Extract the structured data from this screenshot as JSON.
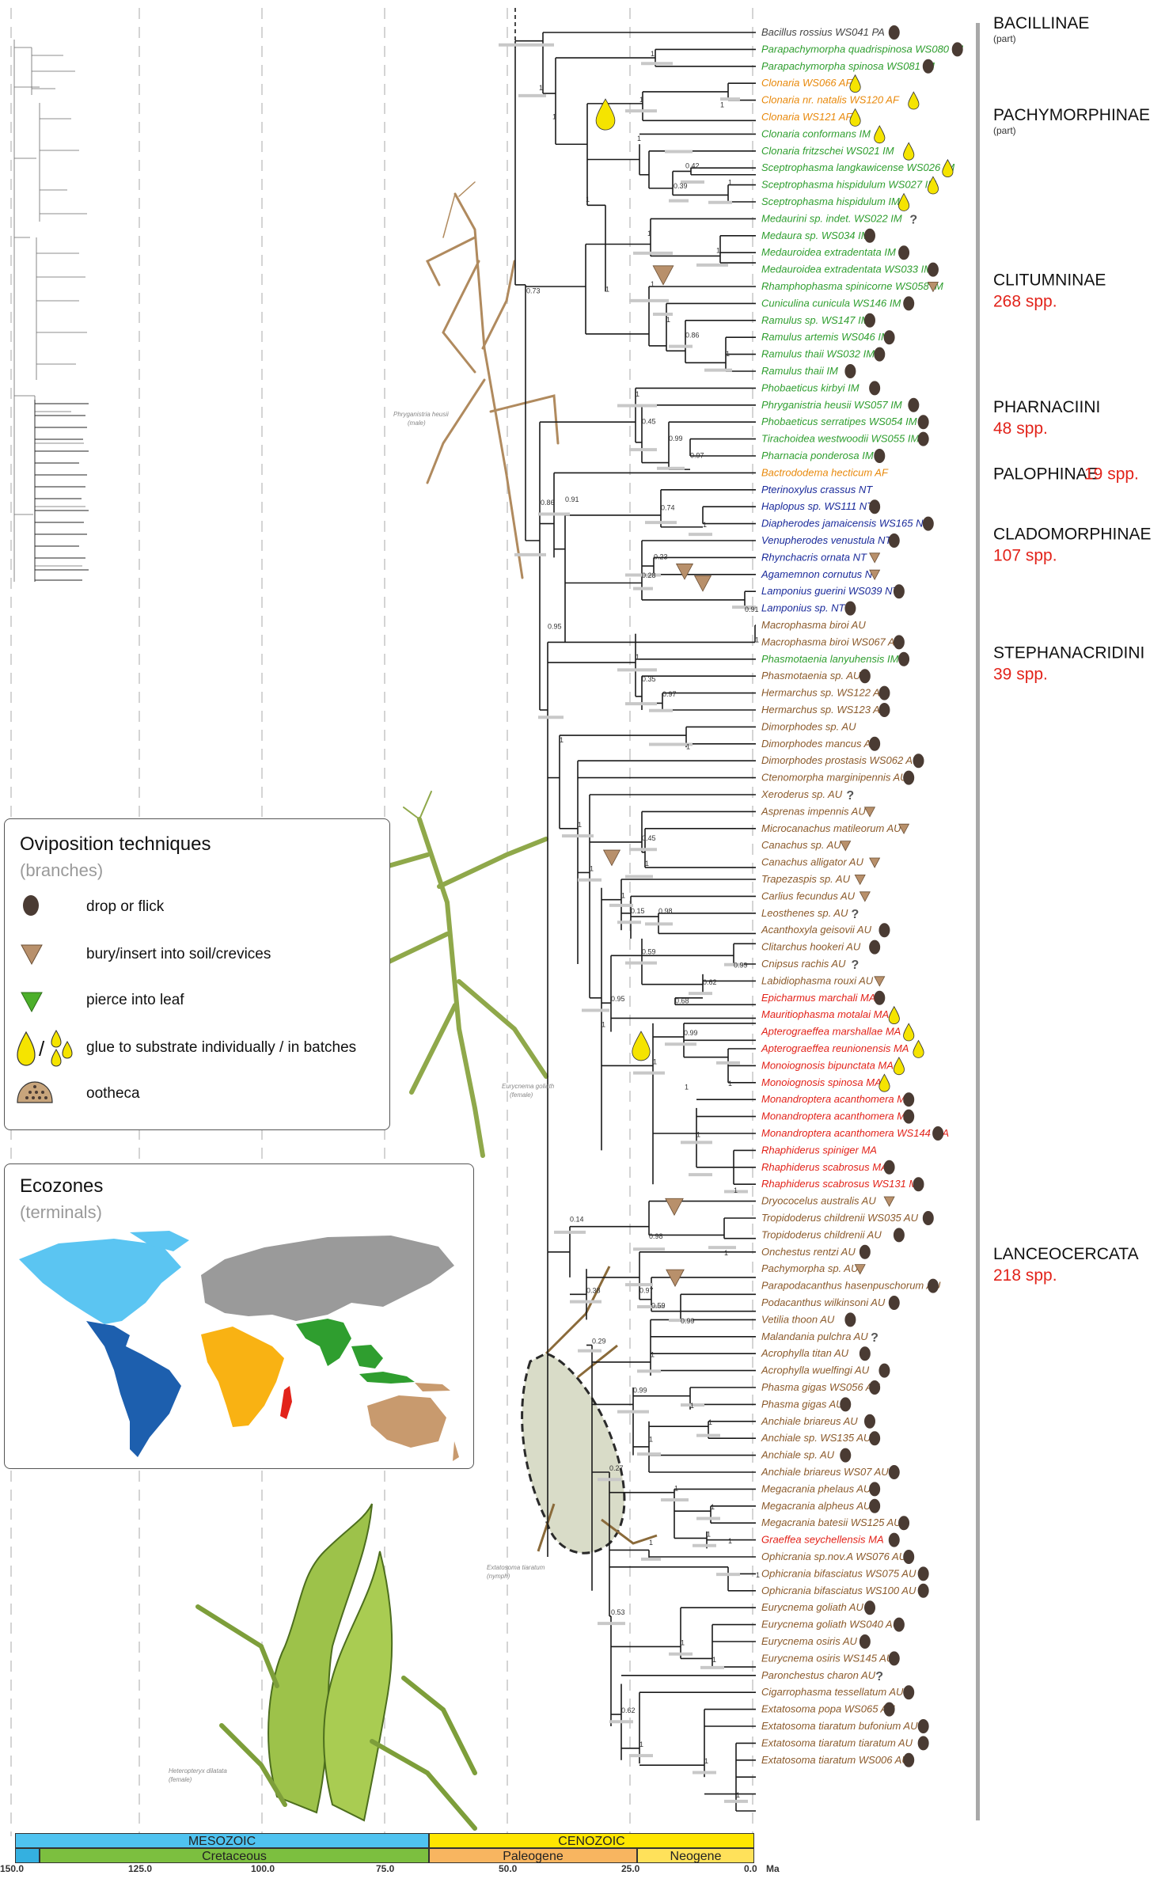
{
  "colors": {
    "IM": "#2f9e2f",
    "AF": "#e8890c",
    "PA": "#444444",
    "NT": "#1a2a9a",
    "AU": "#8b5a2b",
    "MA": "#e2231a",
    "drop": "#4a3b33",
    "bury": "#b8906b",
    "pierce": "#4caf2a",
    "glue": "#f5e400"
  },
  "taxa": [
    {
      "name": "Bacillus rossius WS041 PA",
      "region": "PA",
      "mark": "drop"
    },
    {
      "name": "Parapachymorpha quadrispinosa WS080 IM",
      "region": "IM",
      "mark": "drop"
    },
    {
      "name": "Parapachymorpha spinosa WS081 IM",
      "region": "IM",
      "mark": "drop"
    },
    {
      "name": "Clonaria WS066 AF",
      "region": "AF",
      "mark": "glue"
    },
    {
      "name": "Clonaria nr. natalis WS120 AF",
      "region": "AF",
      "mark": "glue"
    },
    {
      "name": "Clonaria WS121 AF",
      "region": "AF",
      "mark": "glue"
    },
    {
      "name": "Clonaria conformans IM",
      "region": "IM",
      "mark": "glue"
    },
    {
      "name": "Clonaria fritzschei WS021 IM",
      "region": "IM",
      "mark": "glue"
    },
    {
      "name": "Sceptrophasma langkawicense WS026 IM",
      "region": "IM",
      "mark": "glue"
    },
    {
      "name": "Sceptrophasma hispidulum WS027 IM",
      "region": "IM",
      "mark": "glue"
    },
    {
      "name": "Sceptrophasma hispidulum IM",
      "region": "IM",
      "mark": "glue"
    },
    {
      "name": "Medaurini sp. indet. WS022 IM",
      "region": "IM",
      "mark": "q"
    },
    {
      "name": "Medaura sp. WS034 IM",
      "region": "IM",
      "mark": "drop"
    },
    {
      "name": "Medauroidea extradentata IM",
      "region": "IM",
      "mark": "drop"
    },
    {
      "name": "Medauroidea extradentata WS033 IM",
      "region": "IM",
      "mark": "drop"
    },
    {
      "name": "Rhamphophasma spinicorne WS058 IM",
      "region": "IM",
      "mark": "bury"
    },
    {
      "name": "Cuniculina cunicula WS146 IM",
      "region": "IM",
      "mark": "drop"
    },
    {
      "name": "Ramulus sp. WS147 IM",
      "region": "IM",
      "mark": "drop"
    },
    {
      "name": "Ramulus artemis WS046 IM",
      "region": "IM",
      "mark": "drop"
    },
    {
      "name": "Ramulus thaii WS032 IM",
      "region": "IM",
      "mark": "drop"
    },
    {
      "name": "Ramulus thaii IM",
      "region": "IM",
      "mark": "drop"
    },
    {
      "name": "Phobaeticus kirbyi IM",
      "region": "IM",
      "mark": "drop"
    },
    {
      "name": "Phryganistria heusii WS057 IM",
      "region": "IM",
      "mark": "drop"
    },
    {
      "name": "Phobaeticus serratipes WS054 IM",
      "region": "IM",
      "mark": "drop"
    },
    {
      "name": "Tirachoidea westwoodii WS055 IM",
      "region": "IM",
      "mark": "drop"
    },
    {
      "name": "Pharnacia ponderosa IM",
      "region": "IM",
      "mark": "drop"
    },
    {
      "name": "Bactrododema hecticum AF",
      "region": "AF",
      "mark": ""
    },
    {
      "name": "Pterinoxylus crassus NT",
      "region": "NT",
      "mark": ""
    },
    {
      "name": "Haplopus sp. WS111 NT",
      "region": "NT",
      "mark": "drop"
    },
    {
      "name": "Diapherodes jamaicensis WS165 NT",
      "region": "NT",
      "mark": "drop"
    },
    {
      "name": "Venupherodes venustula NT",
      "region": "NT",
      "mark": "drop"
    },
    {
      "name": "Rhynchacris ornata NT",
      "region": "NT",
      "mark": "bury"
    },
    {
      "name": "Agamemnon cornutus NT",
      "region": "NT",
      "mark": "bury"
    },
    {
      "name": "Lamponius guerini WS039 NT",
      "region": "NT",
      "mark": "drop"
    },
    {
      "name": "Lamponius sp. NT",
      "region": "NT",
      "mark": "drop"
    },
    {
      "name": "Macrophasma biroi AU",
      "region": "AU",
      "mark": ""
    },
    {
      "name": "Macrophasma biroi WS067 AU",
      "region": "AU",
      "mark": "drop"
    },
    {
      "name": "Phasmotaenia lanyuhensis IM",
      "region": "IM",
      "mark": "drop"
    },
    {
      "name": "Phasmotaenia sp. AU",
      "region": "AU",
      "mark": "drop"
    },
    {
      "name": "Hermarchus sp. WS122 AU",
      "region": "AU",
      "mark": "drop"
    },
    {
      "name": "Hermarchus sp. WS123 AU",
      "region": "AU",
      "mark": "drop"
    },
    {
      "name": "Dimorphodes sp. AU",
      "region": "AU",
      "mark": ""
    },
    {
      "name": "Dimorphodes mancus AU",
      "region": "AU",
      "mark": "drop"
    },
    {
      "name": "Dimorphodes prostasis WS062 AU",
      "region": "AU",
      "mark": "drop"
    },
    {
      "name": "Ctenomorpha marginipennis AU",
      "region": "AU",
      "mark": "drop"
    },
    {
      "name": "Xeroderus sp. AU",
      "region": "AU",
      "mark": "q"
    },
    {
      "name": "Asprenas impennis AU",
      "region": "AU",
      "mark": "bury"
    },
    {
      "name": "Microcanachus matileorum AU",
      "region": "AU",
      "mark": "bury"
    },
    {
      "name": "Canachus sp. AU",
      "region": "AU",
      "mark": "bury"
    },
    {
      "name": "Canachus alligator AU",
      "region": "AU",
      "mark": "bury"
    },
    {
      "name": "Trapezaspis sp. AU",
      "region": "AU",
      "mark": "bury"
    },
    {
      "name": "Carlius fecundus AU",
      "region": "AU",
      "mark": "bury"
    },
    {
      "name": "Leosthenes sp. AU",
      "region": "AU",
      "mark": "q"
    },
    {
      "name": "Acanthoxyla geisovii AU",
      "region": "AU",
      "mark": "drop"
    },
    {
      "name": "Clitarchus hookeri AU",
      "region": "AU",
      "mark": "drop"
    },
    {
      "name": "Cnipsus rachis AU",
      "region": "AU",
      "mark": "q"
    },
    {
      "name": "Labidiophasma rouxi AU",
      "region": "AU",
      "mark": "bury"
    },
    {
      "name": "Epicharmus marchali MA",
      "region": "MA",
      "mark": "drop"
    },
    {
      "name": "Mauritiophasma motalai MA",
      "region": "MA",
      "mark": "glue"
    },
    {
      "name": "Apterograeffea marshallae MA",
      "region": "MA",
      "mark": "glue"
    },
    {
      "name": "Apterograeffea reunionensis MA",
      "region": "MA",
      "mark": "glue"
    },
    {
      "name": "Monoiognosis bipunctata MA",
      "region": "MA",
      "mark": "glue"
    },
    {
      "name": "Monoiognosis spinosa MA",
      "region": "MA",
      "mark": "glue"
    },
    {
      "name": "Monandroptera acanthomera MA",
      "region": "MA",
      "mark": "drop"
    },
    {
      "name": "Monandroptera acanthomera MA",
      "region": "MA",
      "mark": "drop"
    },
    {
      "name": "Monandroptera acanthomera WS144 MA",
      "region": "MA",
      "mark": "drop"
    },
    {
      "name": "Rhaphiderus spiniger MA",
      "region": "MA",
      "mark": ""
    },
    {
      "name": "Rhaphiderus scabrosus MA",
      "region": "MA",
      "mark": "drop"
    },
    {
      "name": "Rhaphiderus scabrosus WS131 MA",
      "region": "MA",
      "mark": "drop"
    },
    {
      "name": "Dryococelus australis AU",
      "region": "AU",
      "mark": "bury"
    },
    {
      "name": "Tropidoderus childrenii WS035 AU",
      "region": "AU",
      "mark": "drop"
    },
    {
      "name": "Tropidoderus childrenii AU",
      "region": "AU",
      "mark": "drop"
    },
    {
      "name": "Onchestus rentzi AU",
      "region": "AU",
      "mark": "drop"
    },
    {
      "name": "Pachymorpha sp. AU",
      "region": "AU",
      "mark": "bury"
    },
    {
      "name": "Parapodacanthus hasenpuschorum AU",
      "region": "AU",
      "mark": "drop"
    },
    {
      "name": "Podacanthus wilkinsoni AU",
      "region": "AU",
      "mark": "drop"
    },
    {
      "name": "Vetilia thoon AU",
      "region": "AU",
      "mark": "drop"
    },
    {
      "name": "Malandania pulchra AU",
      "region": "AU",
      "mark": "q"
    },
    {
      "name": "Acrophylla titan AU",
      "region": "AU",
      "mark": "drop"
    },
    {
      "name": "Acrophylla wuelfingi AU",
      "region": "AU",
      "mark": "drop"
    },
    {
      "name": "Phasma gigas WS056 AU",
      "region": "AU",
      "mark": "drop"
    },
    {
      "name": "Phasma gigas AU",
      "region": "AU",
      "mark": "drop"
    },
    {
      "name": "Anchiale briareus AU",
      "region": "AU",
      "mark": "drop"
    },
    {
      "name": "Anchiale sp. WS135 AU",
      "region": "AU",
      "mark": "drop"
    },
    {
      "name": "Anchiale sp. AU",
      "region": "AU",
      "mark": "drop"
    },
    {
      "name": "Anchiale briareus WS07 AU",
      "region": "AU",
      "mark": "drop"
    },
    {
      "name": "Megacrania phelaus AU",
      "region": "AU",
      "mark": "drop"
    },
    {
      "name": "Megacrania alpheus AU",
      "region": "AU",
      "mark": "drop"
    },
    {
      "name": "Megacrania batesii WS125 AU",
      "region": "AU",
      "mark": "drop"
    },
    {
      "name": "Graeffea seychellensis MA",
      "region": "MA",
      "mark": "drop"
    },
    {
      "name": "Ophicrania sp.nov.A WS076 AU",
      "region": "AU",
      "mark": "drop"
    },
    {
      "name": "Ophicrania bifasciatus WS075 AU",
      "region": "AU",
      "mark": "drop"
    },
    {
      "name": "Ophicrania bifasciatus WS100 AU",
      "region": "AU",
      "mark": "drop"
    },
    {
      "name": "Eurycnema goliath AU",
      "region": "AU",
      "mark": "drop"
    },
    {
      "name": "Eurycnema goliath WS040 AU",
      "region": "AU",
      "mark": "drop"
    },
    {
      "name": "Eurycnema osiris AU",
      "region": "AU",
      "mark": "drop"
    },
    {
      "name": "Eurycnema osiris WS145 AU",
      "region": "AU",
      "mark": "drop"
    },
    {
      "name": "Paronchestus charon AU",
      "region": "AU",
      "mark": "q"
    },
    {
      "name": "Cigarrophasma tessellatum AU",
      "region": "AU",
      "mark": "drop"
    },
    {
      "name": "Extatosoma popa WS065 AU",
      "region": "AU",
      "mark": "drop"
    },
    {
      "name": "Extatosoma tiaratum bufonium AU",
      "region": "AU",
      "mark": "drop"
    },
    {
      "name": "Extatosoma tiaratum tiaratum AU",
      "region": "AU",
      "mark": "drop"
    },
    {
      "name": "Extatosoma tiaratum WS006 AU",
      "region": "AU",
      "mark": "drop"
    }
  ],
  "clades": [
    {
      "name": "BACILLINAE",
      "sub": "(part)",
      "spp": "",
      "from": 0,
      "to": 0
    },
    {
      "name": "PACHYMORPHINAE",
      "sub": "(part)",
      "spp": "",
      "from": 1,
      "to": 10
    },
    {
      "name": "CLITUMNINAE",
      "sub": "",
      "spp": "268 spp.",
      "from": 11,
      "to": 20
    },
    {
      "name": "PHARNACIINI",
      "sub": "",
      "spp": "48 spp.",
      "from": 21,
      "to": 25
    },
    {
      "name": "PALOPHINAE",
      "sub": "",
      "spp": "19 spp.",
      "from": 26,
      "to": 26
    },
    {
      "name": "CLADOMORPHINAE",
      "sub": "",
      "spp": "107 spp.",
      "from": 27,
      "to": 34
    },
    {
      "name": "STEPHANACRIDINI",
      "sub": "",
      "spp": "39 spp.",
      "from": 35,
      "to": 40
    },
    {
      "name": "LANCEOCERCATA",
      "sub": "",
      "spp": "218 spp.",
      "from": 41,
      "to": 105
    }
  ],
  "support_values": [
    {
      "text": "0.73",
      "x": 665,
      "row": 15.5
    },
    {
      "text": "1",
      "x": 681,
      "row": 3.5
    },
    {
      "text": "1",
      "x": 698,
      "row": 5.2
    },
    {
      "text": "1",
      "x": 822,
      "row": 1.5
    },
    {
      "text": "1",
      "x": 805,
      "row": 6.5
    },
    {
      "text": "1",
      "x": 808,
      "row": 4.2
    },
    {
      "text": "1",
      "x": 910,
      "row": 4.5
    },
    {
      "text": "0.42",
      "x": 866,
      "row": 8.1
    },
    {
      "text": "0.39",
      "x": 851,
      "row": 9.3
    },
    {
      "text": "1",
      "x": 740,
      "row": 10.1
    },
    {
      "text": "1",
      "x": 920,
      "row": 9.1
    },
    {
      "text": "1",
      "x": 818,
      "row": 12.1
    },
    {
      "text": "1",
      "x": 905,
      "row": 13.1
    },
    {
      "text": "1",
      "x": 765,
      "row": 15.4
    },
    {
      "text": "1",
      "x": 822,
      "row": 15.1
    },
    {
      "text": "1",
      "x": 842,
      "row": 17.2
    },
    {
      "text": "0.86",
      "x": 866,
      "row": 18.1
    },
    {
      "text": "1",
      "x": 917,
      "row": 19.2
    },
    {
      "text": "1",
      "x": 803,
      "row": 21.6
    },
    {
      "text": "0.45",
      "x": 811,
      "row": 23.2
    },
    {
      "text": "0.99",
      "x": 845,
      "row": 24.2
    },
    {
      "text": "0.97",
      "x": 872,
      "row": 25.2
    },
    {
      "text": "0.86",
      "x": 683,
      "row": 28.0
    },
    {
      "text": "0.91",
      "x": 714,
      "row": 27.8
    },
    {
      "text": "0.74",
      "x": 835,
      "row": 28.3
    },
    {
      "text": "1",
      "x": 888,
      "row": 29.3
    },
    {
      "text": "0.23",
      "x": 826,
      "row": 31.2
    },
    {
      "text": "0.28",
      "x": 811,
      "row": 32.3
    },
    {
      "text": "0.91",
      "x": 941,
      "row": 34.3
    },
    {
      "text": "0.95",
      "x": 692,
      "row": 35.3
    },
    {
      "text": "1",
      "x": 954,
      "row": 36.1
    },
    {
      "text": "1",
      "x": 803,
      "row": 37.1
    },
    {
      "text": "0.35",
      "x": 811,
      "row": 38.4
    },
    {
      "text": "0.97",
      "x": 837,
      "row": 39.3
    },
    {
      "text": "1",
      "x": 707,
      "row": 42.0
    },
    {
      "text": "1",
      "x": 867,
      "row": 42.4
    },
    {
      "text": "1",
      "x": 730,
      "row": 47.0
    },
    {
      "text": "1",
      "x": 745,
      "row": 49.6
    },
    {
      "text": "0.45",
      "x": 811,
      "row": 47.8
    },
    {
      "text": "1",
      "x": 815,
      "row": 49.3
    },
    {
      "text": "1",
      "x": 785,
      "row": 51.2
    },
    {
      "text": "0.15",
      "x": 797,
      "row": 52.1
    },
    {
      "text": "0.98",
      "x": 832,
      "row": 52.1
    },
    {
      "text": "0.59",
      "x": 811,
      "row": 54.5
    },
    {
      "text": "0.99",
      "x": 927,
      "row": 55.3
    },
    {
      "text": "0.62",
      "x": 888,
      "row": 56.3
    },
    {
      "text": "0.68",
      "x": 853,
      "row": 57.4
    },
    {
      "text": "0.95",
      "x": 772,
      "row": 57.3
    },
    {
      "text": "1",
      "x": 760,
      "row": 58.8
    },
    {
      "text": "0.99",
      "x": 864,
      "row": 59.3
    },
    {
      "text": "1",
      "x": 825,
      "row": 61.0
    },
    {
      "text": "1",
      "x": 865,
      "row": 62.5
    },
    {
      "text": "1",
      "x": 920,
      "row": 62.3
    },
    {
      "text": "1",
      "x": 880,
      "row": 65.3
    },
    {
      "text": "1",
      "x": 927,
      "row": 68.6
    },
    {
      "text": "0.14",
      "x": 720,
      "row": 70.3
    },
    {
      "text": "0.98",
      "x": 820,
      "row": 71.3
    },
    {
      "text": "1",
      "x": 915,
      "row": 72.3
    },
    {
      "text": "0.38",
      "x": 741,
      "row": 74.5
    },
    {
      "text": "0.97",
      "x": 808,
      "row": 74.5
    },
    {
      "text": "0.59",
      "x": 823,
      "row": 75.4
    },
    {
      "text": "0.99",
      "x": 860,
      "row": 76.3
    },
    {
      "text": "0.29",
      "x": 748,
      "row": 77.5
    },
    {
      "text": "1",
      "x": 822,
      "row": 78.3
    },
    {
      "text": "0.99",
      "x": 800,
      "row": 80.4
    },
    {
      "text": "1",
      "x": 872,
      "row": 81.3
    },
    {
      "text": "1",
      "x": 895,
      "row": 82.3
    },
    {
      "text": "1",
      "x": 820,
      "row": 83.3
    },
    {
      "text": "0.27",
      "x": 770,
      "row": 85.0
    },
    {
      "text": "1",
      "x": 852,
      "row": 86.2
    },
    {
      "text": "1",
      "x": 898,
      "row": 87.3
    },
    {
      "text": "1",
      "x": 893,
      "row": 88.9
    },
    {
      "text": "1",
      "x": 820,
      "row": 89.4
    },
    {
      "text": "1",
      "x": 920,
      "row": 89.3
    },
    {
      "text": "1",
      "x": 955,
      "row": 91.3
    },
    {
      "text": "0.53",
      "x": 772,
      "row": 93.5
    },
    {
      "text": "1",
      "x": 860,
      "row": 95.3
    },
    {
      "text": "1",
      "x": 900,
      "row": 96.3
    },
    {
      "text": "0.62",
      "x": 785,
      "row": 99.3
    },
    {
      "text": "1",
      "x": 808,
      "row": 101.3
    },
    {
      "text": "1",
      "x": 890,
      "row": 102.3
    },
    {
      "text": "1",
      "x": 930,
      "row": 104.3
    }
  ],
  "photo_labels": {
    "phryganistria": "Phryganistria heusii",
    "phryganistria_sex": "(male)",
    "eurycnema": "Eurycnema goliath",
    "eurycnema_sex": "(female)",
    "extatosoma": "Extatosoma tiaratum",
    "extatosoma_sex": "(nymph)",
    "heteropteryx": "Heteropteryx dilatata",
    "heteropteryx_sex": "(female)"
  },
  "legend_oviposition": {
    "title": "Oviposition techniques",
    "subtitle": "(branches)",
    "items": [
      "drop or flick",
      "bury/insert into soil/crevices",
      "pierce into leaf",
      "glue to substrate individually / in batches",
      "ootheca"
    ]
  },
  "legend_ecozones": {
    "title": "Ecozones",
    "subtitle": "(terminals)",
    "region_colors": [
      "#5bc5f2",
      "#1d5fae",
      "#9a9a9a",
      "#f9b213",
      "#e2231a",
      "#2f9e2f",
      "#c89a6e"
    ]
  },
  "timescale": {
    "eras": [
      "MESOZOIC",
      "CENOZOIC"
    ],
    "periods": [
      "Cretaceous",
      "Paleogene",
      "Neogene"
    ],
    "ticks": [
      "150.0",
      "125.0",
      "100.0",
      "75.0",
      "50.0",
      "25.0",
      "0.0"
    ],
    "unit": "Ma"
  }
}
